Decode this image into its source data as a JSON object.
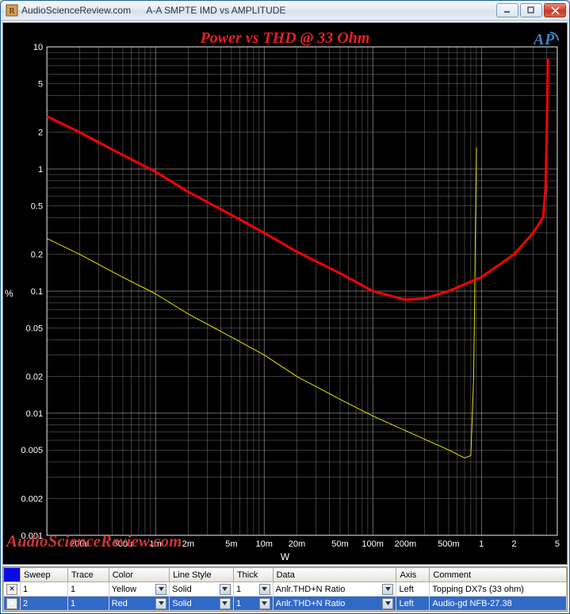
{
  "window": {
    "site": "AudioScienceReview.com",
    "title": "A-A SMPTE IMD vs AMPLITUDE"
  },
  "chart": {
    "type": "line-loglog",
    "title": "Power vs THD @ 33 Ohm",
    "title_color": "#e62020",
    "watermark": "AudioScienceReview.com",
    "logo": "AP",
    "background": "#000000",
    "grid_color": "#e8e8e8",
    "grid_stroke": 0.5,
    "axis_label_color": "#ffffff",
    "tick_fontsize": 11,
    "ylabel": "%",
    "xlabel": "W",
    "xlim": [
      0.0001,
      5
    ],
    "ylim": [
      0.001,
      10
    ],
    "x_ticks": [
      {
        "v": 0.0002,
        "l": "200u"
      },
      {
        "v": 0.0005,
        "l": "500u"
      },
      {
        "v": 0.001,
        "l": "1m"
      },
      {
        "v": 0.002,
        "l": "2m"
      },
      {
        "v": 0.005,
        "l": "5m"
      },
      {
        "v": 0.01,
        "l": "10m"
      },
      {
        "v": 0.02,
        "l": "20m"
      },
      {
        "v": 0.05,
        "l": "50m"
      },
      {
        "v": 0.1,
        "l": "100m"
      },
      {
        "v": 0.2,
        "l": "200m"
      },
      {
        "v": 0.5,
        "l": "500m"
      },
      {
        "v": 1,
        "l": "1"
      },
      {
        "v": 2,
        "l": "2"
      },
      {
        "v": 5,
        "l": "5"
      }
    ],
    "y_ticks": [
      {
        "v": 0.001,
        "l": "0.001"
      },
      {
        "v": 0.002,
        "l": "0.002"
      },
      {
        "v": 0.005,
        "l": "0.005"
      },
      {
        "v": 0.01,
        "l": "0.01"
      },
      {
        "v": 0.02,
        "l": "0.02"
      },
      {
        "v": 0.05,
        "l": "0.05"
      },
      {
        "v": 0.1,
        "l": "0.1"
      },
      {
        "v": 0.2,
        "l": "0.2"
      },
      {
        "v": 0.5,
        "l": "0.5"
      },
      {
        "v": 1,
        "l": "1"
      },
      {
        "v": 2,
        "l": "2"
      },
      {
        "v": 5,
        "l": "5"
      },
      {
        "v": 10,
        "l": "10"
      }
    ],
    "series": [
      {
        "name": "Topping DX7s (33 ohm)",
        "color": "#e6e600",
        "stroke_width": 1,
        "points": [
          [
            0.0001,
            0.27
          ],
          [
            0.0002,
            0.2
          ],
          [
            0.0005,
            0.13
          ],
          [
            0.001,
            0.095
          ],
          [
            0.002,
            0.065
          ],
          [
            0.005,
            0.042
          ],
          [
            0.01,
            0.03
          ],
          [
            0.02,
            0.02
          ],
          [
            0.05,
            0.013
          ],
          [
            0.1,
            0.0095
          ],
          [
            0.2,
            0.0072
          ],
          [
            0.5,
            0.005
          ],
          [
            0.7,
            0.0043
          ],
          [
            0.8,
            0.0045
          ],
          [
            0.85,
            0.02
          ],
          [
            0.9,
            1.5
          ]
        ]
      },
      {
        "name": "Audio-gd NFB-27.38",
        "color": "#ff0000",
        "stroke_width": 3,
        "points": [
          [
            0.0001,
            2.7
          ],
          [
            0.0002,
            2.0
          ],
          [
            0.0005,
            1.3
          ],
          [
            0.001,
            0.95
          ],
          [
            0.002,
            0.65
          ],
          [
            0.005,
            0.42
          ],
          [
            0.01,
            0.3
          ],
          [
            0.02,
            0.21
          ],
          [
            0.05,
            0.14
          ],
          [
            0.1,
            0.1
          ],
          [
            0.2,
            0.085
          ],
          [
            0.3,
            0.087
          ],
          [
            0.5,
            0.1
          ],
          [
            1,
            0.13
          ],
          [
            2,
            0.2
          ],
          [
            3,
            0.3
          ],
          [
            3.7,
            0.4
          ],
          [
            3.9,
            0.7
          ],
          [
            4.0,
            2.0
          ],
          [
            4.1,
            8.0
          ]
        ]
      }
    ]
  },
  "table": {
    "headers": [
      "Sweep",
      "Trace",
      "Color",
      "Line Style",
      "Thick",
      "Data",
      "Axis",
      "Comment"
    ],
    "rows": [
      {
        "selected": false,
        "sweep": "1",
        "trace": "1",
        "color": "Yellow",
        "linestyle": "Solid",
        "thick": "1",
        "data": "Anlr.THD+N Ratio",
        "axis": "Left",
        "comment": "Topping DX7s (33 ohm)"
      },
      {
        "selected": true,
        "sweep": "2",
        "trace": "1",
        "color": "Red",
        "linestyle": "Solid",
        "thick": "1",
        "data": "Anlr.THD+N Ratio",
        "axis": "Left",
        "comment": "Audio-gd NFB-27.38"
      }
    ]
  }
}
